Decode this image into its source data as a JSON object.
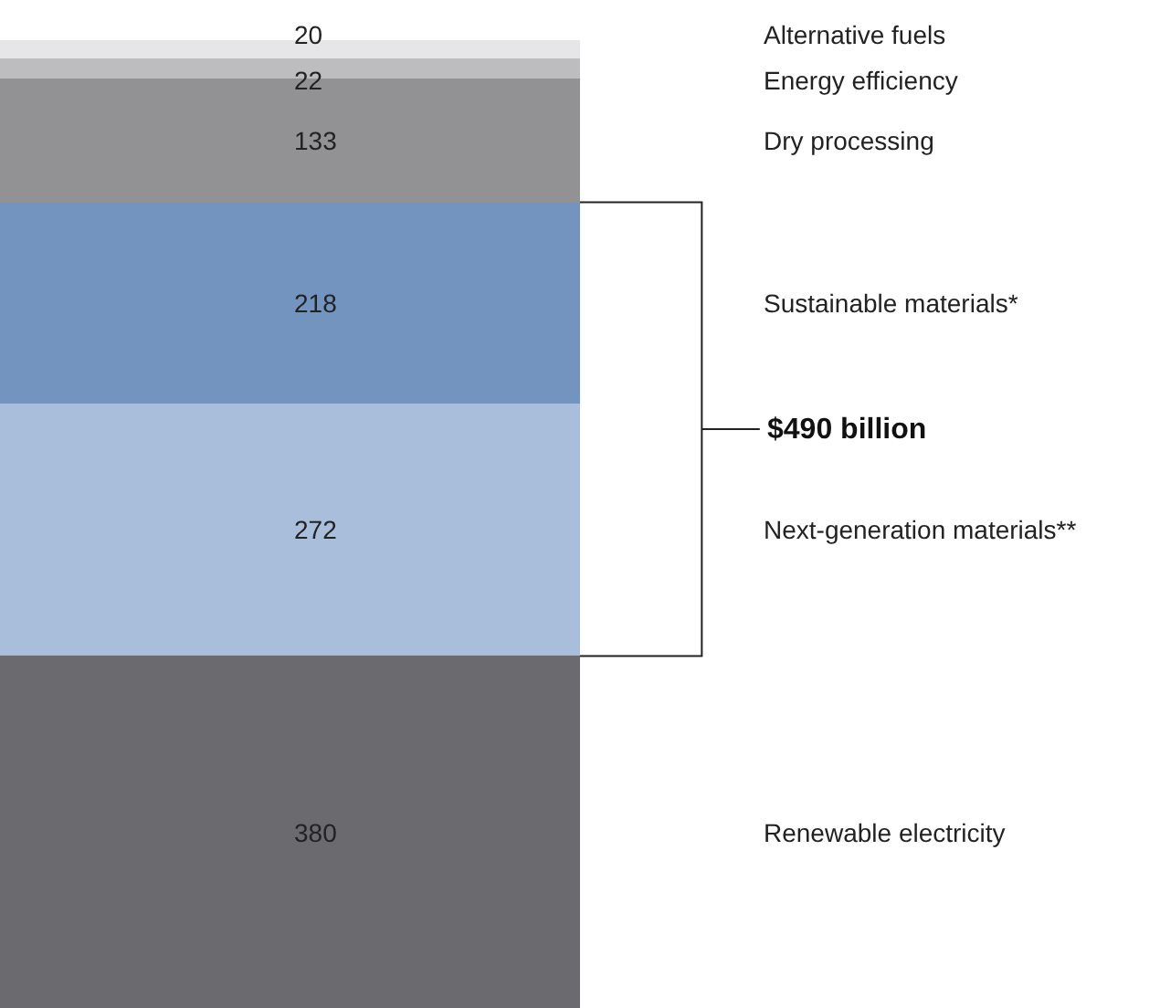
{
  "chart_data": {
    "type": "bar",
    "stacked": true,
    "categories": [
      null
    ],
    "data_labels": true,
    "legend": false,
    "series": [
      {
        "name": "Renewable electricity",
        "color": "#6b6b6f",
        "values": [
          380
        ]
      },
      {
        "name": "Next-generation materials**",
        "color": "#a8bedb",
        "values": [
          272
        ]
      },
      {
        "name": "Sustainable materials*",
        "color": "#7394bf",
        "values": [
          218
        ]
      },
      {
        "name": "Dry processing",
        "color": "#929295",
        "values": [
          133
        ]
      },
      {
        "name": "Energy efficiency",
        "color": "#bdbdc0",
        "values": [
          22
        ]
      },
      {
        "name": "Alternative fuels",
        "color": "#e6e6e8",
        "values": [
          20
        ]
      }
    ],
    "annotations": [
      "$490 billion"
    ]
  }
}
